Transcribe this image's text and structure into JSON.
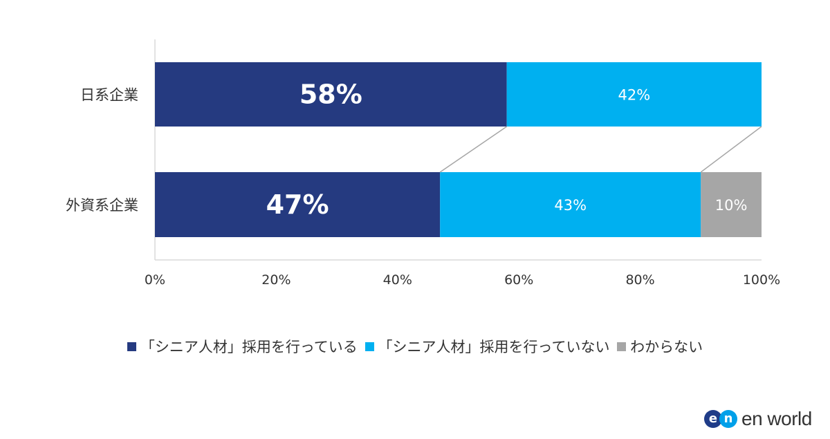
{
  "chart_data": {
    "type": "bar",
    "orientation": "horizontal",
    "stacked": true,
    "categories": [
      "日系企業",
      "外資系企業"
    ],
    "series": [
      {
        "name": "「シニア人材」採用を行っている",
        "values": [
          58,
          47
        ],
        "color": "#253a80"
      },
      {
        "name": "「シニア人材」採用を行っていない",
        "values": [
          42,
          43
        ],
        "color": "#00b0f0"
      },
      {
        "name": "わからない",
        "values": [
          0,
          10
        ],
        "color": "#a6a6a6"
      }
    ],
    "data_labels": [
      [
        "58%",
        "42%",
        ""
      ],
      [
        "47%",
        "43%",
        "10%"
      ]
    ],
    "xlim": [
      0,
      100
    ],
    "x_ticks": [
      "0%",
      "20%",
      "40%",
      "60%",
      "80%",
      "100%"
    ],
    "grid": false,
    "legend_position": "bottom",
    "series_lines": true
  },
  "logo": {
    "mark": "en",
    "text": "en world",
    "colors": [
      "#1f3c88",
      "#00a0e9"
    ]
  }
}
